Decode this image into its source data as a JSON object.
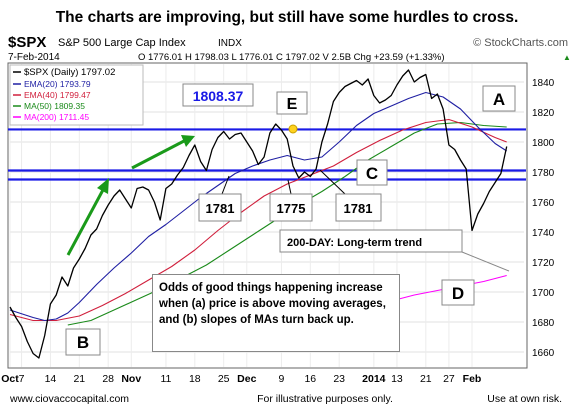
{
  "chart_data": {
    "type": "line",
    "headline": "The charts are improving, but still have some hurdles to cross.",
    "ticker": "$SPX",
    "index_name": "S&P 500 Large Cap Index",
    "index_tag": "INDX",
    "watermark": "© StockCharts.com",
    "date": "7-Feb-2014",
    "ohlc_text": "O 1776.01  H 1798.03  L 1776.01  C 1797.02  V 2.5B  Chg +23.59 (+1.33%)",
    "ohlc_arrow": "▲",
    "legend": [
      {
        "label": "$SPX (Daily) 1797.02",
        "color": "#000000"
      },
      {
        "label": "EMA(20) 1793.79",
        "color": "#1f1fa3"
      },
      {
        "label": "EMA(40) 1799.47",
        "color": "#d01f3c"
      },
      {
        "label": "MA(50) 1809.35",
        "color": "#1a8a1a"
      },
      {
        "label": "MA(200) 1711.45",
        "color": "#ff00ff"
      }
    ],
    "y_ticks": [
      1660,
      1680,
      1700,
      1720,
      1740,
      1760,
      1780,
      1800,
      1820,
      1840
    ],
    "ylim": [
      1650,
      1852
    ],
    "x_labels": [
      {
        "label": "Oct",
        "i": 0
      },
      {
        "label": "7",
        "i": 2
      },
      {
        "label": "14",
        "i": 7
      },
      {
        "label": "21",
        "i": 12
      },
      {
        "label": "28",
        "i": 17
      },
      {
        "label": "Nov",
        "i": 21
      },
      {
        "label": "11",
        "i": 27
      },
      {
        "label": "18",
        "i": 32
      },
      {
        "label": "25",
        "i": 37
      },
      {
        "label": "Dec",
        "i": 41
      },
      {
        "label": "9",
        "i": 47
      },
      {
        "label": "16",
        "i": 52
      },
      {
        "label": "23",
        "i": 57
      },
      {
        "label": "2014",
        "i": 63
      },
      {
        "label": "13",
        "i": 67
      },
      {
        "label": "21",
        "i": 72
      },
      {
        "label": "27",
        "i": 76
      },
      {
        "label": "Feb",
        "i": 80
      }
    ],
    "x_count": 90,
    "horizontal_lines": [
      {
        "value": 1808.37,
        "color": "#1a1ae6"
      },
      {
        "value": 1781,
        "color": "#1a1ae6"
      },
      {
        "value": 1775,
        "color": "#1a1ae6"
      }
    ],
    "series": [
      {
        "name": "$SPX (Daily)",
        "color": "#000000",
        "width": 1.3,
        "points": [
          [
            0,
            1690
          ],
          [
            1,
            1683
          ],
          [
            2,
            1677
          ],
          [
            3,
            1667
          ],
          [
            4,
            1659
          ],
          [
            5,
            1656
          ],
          [
            6,
            1671
          ],
          [
            7,
            1692
          ],
          [
            8,
            1698
          ],
          [
            9,
            1710
          ],
          [
            10,
            1704
          ],
          [
            11,
            1716
          ],
          [
            12,
            1722
          ],
          [
            13,
            1729
          ],
          [
            14,
            1738
          ],
          [
            15,
            1742
          ],
          [
            16,
            1751
          ],
          [
            17,
            1758
          ],
          [
            18,
            1764
          ],
          [
            19,
            1768
          ],
          [
            20,
            1762
          ],
          [
            21,
            1756
          ],
          [
            22,
            1769
          ],
          [
            23,
            1770
          ],
          [
            24,
            1768
          ],
          [
            25,
            1760
          ],
          [
            26,
            1748
          ],
          [
            27,
            1769
          ],
          [
            28,
            1772
          ],
          [
            29,
            1778
          ],
          [
            30,
            1783
          ],
          [
            31,
            1791
          ],
          [
            32,
            1798
          ],
          [
            33,
            1787
          ],
          [
            34,
            1781
          ],
          [
            35,
            1795
          ],
          [
            36,
            1803
          ],
          [
            37,
            1807
          ],
          [
            38,
            1802
          ],
          [
            39,
            1805
          ],
          [
            40,
            1806
          ],
          [
            41,
            1800
          ],
          [
            42,
            1794
          ],
          [
            43,
            1785
          ],
          [
            44,
            1790
          ],
          [
            45,
            1806
          ],
          [
            46,
            1812
          ],
          [
            47,
            1808
          ],
          [
            48,
            1802
          ],
          [
            49,
            1784
          ],
          [
            50,
            1776
          ],
          [
            51,
            1780
          ],
          [
            52,
            1777
          ],
          [
            53,
            1782
          ],
          [
            54,
            1800
          ],
          [
            55,
            1812
          ],
          [
            56,
            1827
          ],
          [
            57,
            1833
          ],
          [
            58,
            1837
          ],
          [
            59,
            1839
          ],
          [
            60,
            1841
          ],
          [
            61,
            1838
          ],
          [
            62,
            1842
          ],
          [
            63,
            1831
          ],
          [
            64,
            1826
          ],
          [
            65,
            1828
          ],
          [
            66,
            1831
          ],
          [
            67,
            1838
          ],
          [
            68,
            1844
          ],
          [
            69,
            1848
          ],
          [
            70,
            1840
          ],
          [
            71,
            1843
          ],
          [
            72,
            1845
          ],
          [
            73,
            1829
          ],
          [
            74,
            1832
          ],
          [
            75,
            1822
          ],
          [
            76,
            1798
          ],
          [
            77,
            1795
          ],
          [
            78,
            1788
          ],
          [
            79,
            1782
          ],
          [
            80,
            1741
          ],
          [
            81,
            1752
          ],
          [
            82,
            1759
          ],
          [
            83,
            1767
          ],
          [
            84,
            1773
          ],
          [
            85,
            1779
          ],
          [
            86,
            1797
          ]
        ]
      },
      {
        "name": "EMA(20)",
        "color": "#1f1fa3",
        "width": 1.1,
        "points": [
          [
            0,
            1688
          ],
          [
            4,
            1683
          ],
          [
            6,
            1681
          ],
          [
            8,
            1682
          ],
          [
            10,
            1686
          ],
          [
            12,
            1693
          ],
          [
            15,
            1705
          ],
          [
            18,
            1716
          ],
          [
            21,
            1726
          ],
          [
            24,
            1737
          ],
          [
            27,
            1745
          ],
          [
            30,
            1754
          ],
          [
            33,
            1763
          ],
          [
            36,
            1771
          ],
          [
            39,
            1779
          ],
          [
            42,
            1784
          ],
          [
            45,
            1788
          ],
          [
            48,
            1791
          ],
          [
            51,
            1788
          ],
          [
            54,
            1790
          ],
          [
            57,
            1800
          ],
          [
            60,
            1811
          ],
          [
            63,
            1819
          ],
          [
            66,
            1824
          ],
          [
            69,
            1829
          ],
          [
            72,
            1833
          ],
          [
            75,
            1830
          ],
          [
            78,
            1822
          ],
          [
            81,
            1810
          ],
          [
            84,
            1799
          ],
          [
            86,
            1794
          ]
        ]
      },
      {
        "name": "EMA(40)",
        "color": "#d01f3c",
        "width": 1.1,
        "points": [
          [
            0,
            1685
          ],
          [
            4,
            1681
          ],
          [
            8,
            1681
          ],
          [
            12,
            1684
          ],
          [
            16,
            1691
          ],
          [
            20,
            1699
          ],
          [
            24,
            1708
          ],
          [
            28,
            1717
          ],
          [
            32,
            1728
          ],
          [
            36,
            1741
          ],
          [
            40,
            1753
          ],
          [
            44,
            1764
          ],
          [
            48,
            1772
          ],
          [
            52,
            1778
          ],
          [
            56,
            1784
          ],
          [
            60,
            1793
          ],
          [
            64,
            1801
          ],
          [
            68,
            1808
          ],
          [
            72,
            1813
          ],
          [
            76,
            1815
          ],
          [
            80,
            1810
          ],
          [
            84,
            1803
          ],
          [
            86,
            1800
          ]
        ]
      },
      {
        "name": "MA(50)",
        "color": "#1a8a1a",
        "width": 1.1,
        "points": [
          [
            10,
            1678
          ],
          [
            14,
            1681
          ],
          [
            18,
            1688
          ],
          [
            22,
            1695
          ],
          [
            26,
            1702
          ],
          [
            30,
            1710
          ],
          [
            34,
            1718
          ],
          [
            38,
            1728
          ],
          [
            42,
            1738
          ],
          [
            46,
            1748
          ],
          [
            50,
            1758
          ],
          [
            54,
            1767
          ],
          [
            58,
            1777
          ],
          [
            62,
            1788
          ],
          [
            66,
            1797
          ],
          [
            70,
            1806
          ],
          [
            74,
            1812
          ],
          [
            78,
            1813
          ],
          [
            82,
            1811
          ],
          [
            86,
            1810
          ]
        ]
      },
      {
        "name": "MA(200)",
        "color": "#ff00ff",
        "width": 1.1,
        "points": [
          [
            54,
            1682
          ],
          [
            58,
            1686
          ],
          [
            62,
            1690
          ],
          [
            66,
            1694
          ],
          [
            70,
            1698
          ],
          [
            74,
            1701
          ],
          [
            78,
            1704
          ],
          [
            82,
            1707
          ],
          [
            86,
            1711
          ]
        ]
      }
    ],
    "ma_segment_labels": [
      "1781",
      "1775",
      "1781"
    ],
    "value_box": "1808.37",
    "points_marked": [
      "E",
      "C",
      "A",
      "B",
      "D"
    ],
    "trend_note": "200-DAY: Long-term trend",
    "callout_text": "Odds of good things happening increase when (a) price is above moving averages, and (b) slopes of MAs turn back up.",
    "footer": {
      "left": "www.ciovaccocapital.com",
      "center": "For illustrative purposes only.",
      "right": "Use at own risk."
    }
  }
}
